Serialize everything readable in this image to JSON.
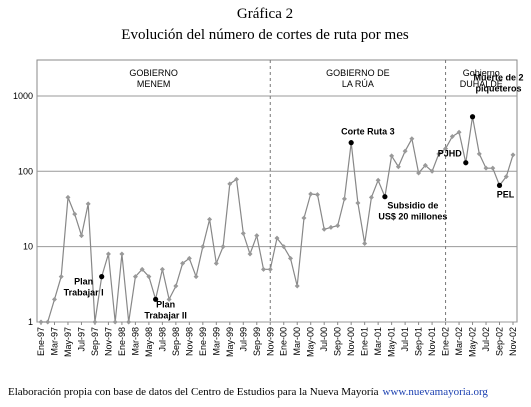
{
  "chart_data": {
    "type": "line",
    "title": "Gráfica 2",
    "subtitle": "Evolución del número de cortes de ruta por mes",
    "source": "Elaboración propia con base de datos del Centro de Estudios para la Nueva Mayoría",
    "source_link": "www.nuevamayoria.org",
    "log_scale": true,
    "grid": true,
    "color": "#888888",
    "ylim": [
      1,
      3000
    ],
    "yticks": [
      1,
      10,
      100,
      1000
    ],
    "categories": [
      "Ene-97",
      null,
      "Mar-97",
      null,
      "May-97",
      null,
      "Jul-97",
      null,
      "Sep-97",
      null,
      "Nov-97",
      null,
      "Ene-98",
      null,
      "Mar-98",
      null,
      "May-98",
      null,
      "Jul-98",
      null,
      "Sep-98",
      null,
      "Nov-98",
      null,
      "Ene-99",
      null,
      "Mar-99",
      null,
      "May-99",
      null,
      "Jul-99",
      null,
      "Sep-99",
      null,
      "Nov-99",
      null,
      "Ene-00",
      null,
      "Mar-00",
      null,
      "May-00",
      null,
      "Jul-00",
      null,
      "Sep-00",
      null,
      "Nov-00",
      null,
      "Ene-01",
      null,
      "Mar-01",
      null,
      "May-01",
      null,
      "Jul-01",
      null,
      "Sep-01",
      null,
      "Nov-01",
      null,
      "Ene-02",
      null,
      "Mar-02",
      null,
      "May-02",
      null,
      "Jul-02",
      null,
      "Sep-02",
      null,
      "Nov-02"
    ],
    "values": [
      1,
      1,
      2,
      4,
      45,
      27,
      14,
      37,
      1,
      4,
      8,
      1,
      8,
      1,
      4,
      5,
      4,
      2,
      5,
      2,
      3,
      6,
      7,
      4,
      10,
      23,
      6,
      10,
      68,
      78,
      15,
      8,
      14,
      5,
      5,
      13,
      10,
      7,
      3,
      24,
      50,
      49,
      17,
      18,
      19,
      43,
      240,
      38,
      11,
      45,
      76,
      46,
      160,
      115,
      185,
      270,
      95,
      120,
      100,
      170,
      200,
      290,
      330,
      130,
      530,
      170,
      110,
      110,
      65,
      85,
      165
    ],
    "periods": [
      {
        "lines": [
          "GOBIERNO",
          "MENEM"
        ]
      },
      {
        "lines": [
          "GOBIERNO DE",
          "LA RÚA"
        ]
      },
      {
        "lines": [
          "Gobierno",
          "DUHALDE"
        ]
      }
    ],
    "annotations": [
      {
        "lines": [
          "Plan",
          "Trabajar I"
        ]
      },
      {
        "lines": [
          "Plan",
          "Trabajar II"
        ]
      },
      {
        "lines": [
          "Corte Ruta 3"
        ]
      },
      {
        "lines": [
          "Subsidio de",
          "US$ 20 millones"
        ]
      },
      {
        "lines": [
          "PJHD"
        ]
      },
      {
        "lines": [
          "Muerte de 2",
          "piqueteros"
        ]
      },
      {
        "lines": [
          "PEL"
        ]
      }
    ]
  }
}
